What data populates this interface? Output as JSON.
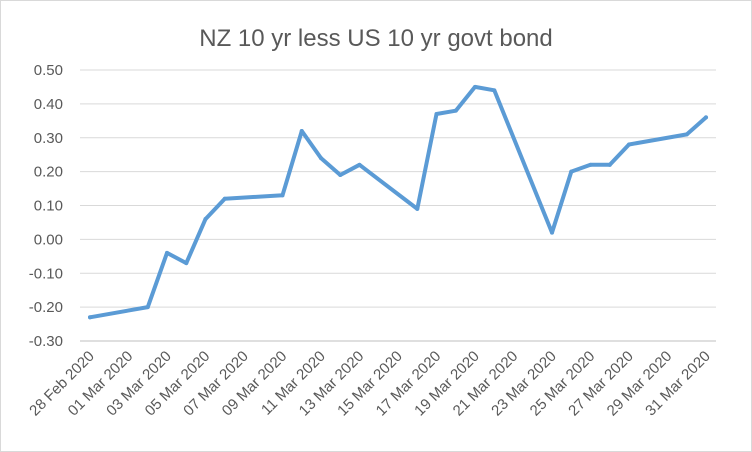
{
  "chart_data": {
    "type": "line",
    "title": "NZ 10 yr less US 10 yr govt bond",
    "xlabel": "",
    "ylabel": "",
    "ylim": [
      -0.3,
      0.5
    ],
    "yticks": [
      "-0.30",
      "-0.20",
      "-0.10",
      "0.00",
      "0.10",
      "0.20",
      "0.30",
      "0.40",
      "0.50"
    ],
    "xticks": [
      "28 Feb 2020",
      "01 Mar 2020",
      "03 Mar 2020",
      "05 Mar 2020",
      "07 Mar 2020",
      "09 Mar 2020",
      "11 Mar 2020",
      "13 Mar 2020",
      "15 Mar 2020",
      "17 Mar 2020",
      "19 Mar 2020",
      "21 Mar 2020",
      "23 Mar 2020",
      "25 Mar 2020",
      "27 Mar 2020",
      "29 Mar 2020",
      "31 Mar 2020"
    ],
    "grid": true,
    "legend": "none",
    "line_color": "#5b9bd5",
    "series": [
      {
        "x": [
          "28 Feb 2020",
          "02 Mar 2020",
          "03 Mar 2020",
          "04 Mar 2020",
          "05 Mar 2020",
          "06 Mar 2020",
          "09 Mar 2020",
          "10 Mar 2020",
          "11 Mar 2020",
          "12 Mar 2020",
          "13 Mar 2020",
          "16 Mar 2020",
          "17 Mar 2020",
          "18 Mar 2020",
          "19 Mar 2020",
          "20 Mar 2020",
          "23 Mar 2020",
          "24 Mar 2020",
          "25 Mar 2020",
          "26 Mar 2020",
          "27 Mar 2020",
          "30 Mar 2020",
          "31 Mar 2020"
        ],
        "values": [
          -0.23,
          -0.2,
          -0.04,
          -0.07,
          0.06,
          0.12,
          0.13,
          0.32,
          0.24,
          0.19,
          0.22,
          0.09,
          0.37,
          0.38,
          0.45,
          0.44,
          0.02,
          0.2,
          0.22,
          0.22,
          0.28,
          0.31,
          0.36
        ]
      }
    ]
  }
}
